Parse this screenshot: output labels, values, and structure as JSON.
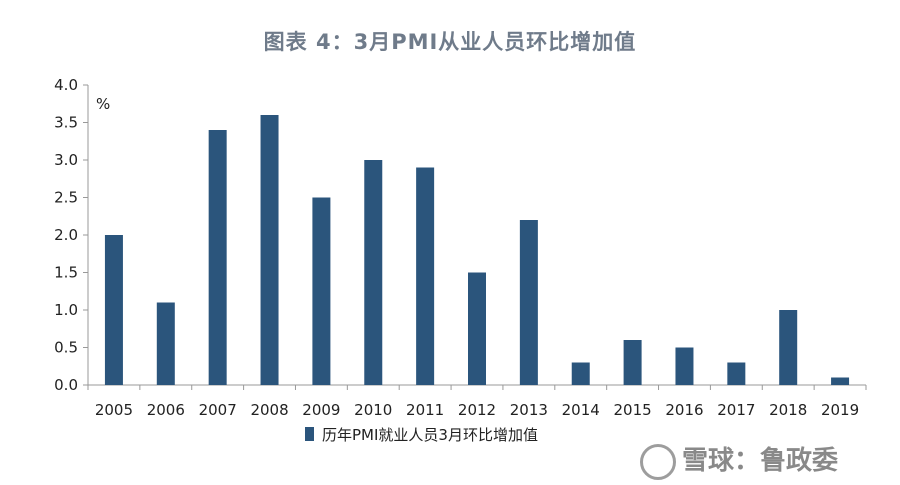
{
  "chart_data": {
    "type": "bar",
    "title": "图表 4：3月PMI从业人员环比增加值",
    "unit": "%",
    "categories": [
      "2005",
      "2006",
      "2007",
      "2008",
      "2009",
      "2010",
      "2011",
      "2012",
      "2013",
      "2014",
      "2015",
      "2016",
      "2017",
      "2018",
      "2019"
    ],
    "series": [
      {
        "name": "历年PMI就业人员3月环比增加值",
        "values": [
          2.0,
          1.1,
          3.4,
          3.6,
          2.5,
          3.0,
          2.9,
          1.5,
          2.2,
          0.3,
          0.6,
          0.5,
          0.3,
          1.0,
          0.1
        ]
      }
    ],
    "ylim": [
      0,
      4.0
    ],
    "yticks": [
      "0.0",
      "0.5",
      "1.0",
      "1.5",
      "2.0",
      "2.5",
      "3.0",
      "3.5",
      "4.0"
    ],
    "grid": false,
    "legend_position": "bottom-left",
    "bar_color": "#2b557c",
    "axis_color": "#999999"
  },
  "watermark": "雪球：鲁政委"
}
